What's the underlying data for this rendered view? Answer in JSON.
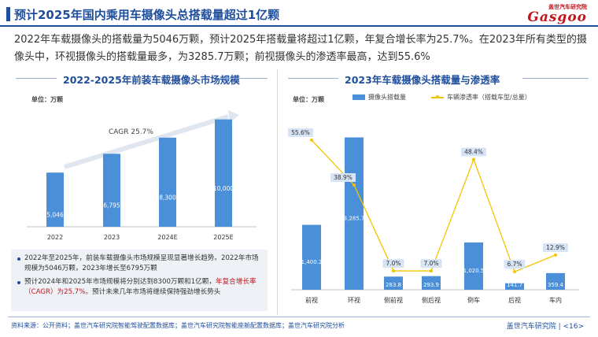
{
  "header": {
    "title": "预计2025年国内乘用车摄像头总搭载量超过1亿颗",
    "logo_top": "盖世汽车研究院",
    "logo_main": "Gasgoo"
  },
  "summary_text": "2022年车载摄像头的搭载量为5046万颗，预计2025年搭载量将超过1亿颗，年复合增长率为25.7%。在2023年所有类型的摄像头中，环视摄像头的搭载量最多，为3285.7万颗；前视摄像头的渗透率最高，达到55.6%",
  "colors": {
    "accent": "#1f4e9c",
    "bar": "#4a8fd8",
    "line": "#f5c400",
    "highlight": "#c0151c"
  },
  "chart_data": [
    {
      "type": "bar",
      "title": "2022-2025年前装车载摄像头市场规模",
      "unit_label": "单位：万颗",
      "categories": [
        "2022",
        "2023",
        "2024E",
        "2025E"
      ],
      "values": [
        5046,
        6795,
        8300,
        10000
      ],
      "data_labels": [
        "5,046",
        "6,795",
        "8,300",
        "10,000"
      ],
      "annotation": "CAGR 25.7%",
      "ylim": [
        0,
        11000
      ],
      "grid": false
    },
    {
      "type": "bar",
      "title": "2023年车载摄像头搭载量与渗透率",
      "unit_label": "单位：万颗",
      "categories": [
        "前视",
        "环视",
        "侧前视",
        "侧后视",
        "倒车",
        "后视",
        "车内"
      ],
      "series": [
        {
          "name": "摄像头搭载量",
          "type": "bar",
          "values": [
            1400.2,
            3285.7,
            283.8,
            293.9,
            1020.5,
            141.7,
            359.4
          ],
          "data_labels": [
            "1,400.2",
            "3,285.7",
            "283.8",
            "293.9",
            "1,020.5",
            "141.7",
            "359.4"
          ]
        },
        {
          "name": "车辆渗透率（搭载车型/总量）",
          "type": "line",
          "values": [
            55.6,
            38.9,
            7.0,
            7.0,
            48.4,
            6.7,
            12.9
          ],
          "data_labels": [
            "55.6%",
            "38.9%",
            "7.0%",
            "7.0%",
            "48.4%",
            "6.7%",
            "12.9%"
          ]
        }
      ],
      "ylim_bar": [
        0,
        3600
      ],
      "ylim_line": [
        0,
        62
      ],
      "legend": "top",
      "grid": false
    }
  ],
  "bullets": {
    "b1": "2022年至2025年，前装车载摄像头市场规模呈现显著增长趋势。2022年市场规模为5046万颗，2023年增长至6795万颗",
    "b2_pre": "预计2024年和2025年市场规模将分别达到8300万颗和1亿颗，",
    "b2_hl": "年复合增长率（CAGR）为25.7%。",
    "b2_post": "预计未来几年市场将继续保持强劲增长势头"
  },
  "footer": {
    "source": "资料来源：公开资料；盖世汽车研究院智能驾驶配置数据库；盖世汽车研究院智能座舱配置数据库；盖世汽车研究院分析",
    "brand": "盖世汽车研究院 | <16>"
  }
}
